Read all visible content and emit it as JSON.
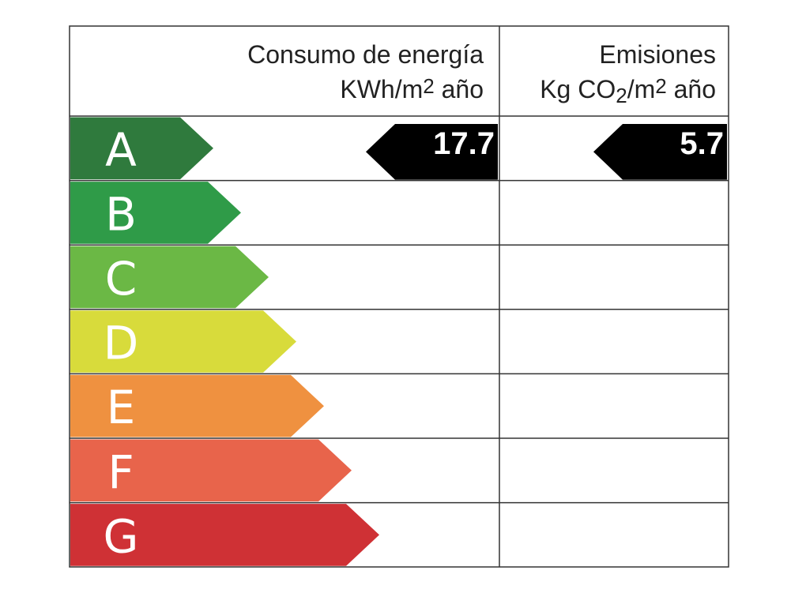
{
  "energy_header": {
    "title": "Consumo de energía",
    "unit": [
      "KWh/m",
      "2",
      " año"
    ]
  },
  "emissions_header": {
    "title": "Emisiones",
    "unit": [
      "Kg CO",
      "2",
      "/m",
      "2",
      " año"
    ]
  },
  "ratings": [
    {
      "letter": "A",
      "color": "#2f7a3d"
    },
    {
      "letter": "B",
      "color": "#2f9b48"
    },
    {
      "letter": "C",
      "color": "#6bb845"
    },
    {
      "letter": "D",
      "color": "#d8db3b"
    },
    {
      "letter": "E",
      "color": "#ef9140"
    },
    {
      "letter": "F",
      "color": "#e8644b"
    },
    {
      "letter": "G",
      "color": "#cf3135"
    }
  ],
  "result": {
    "rating": "A",
    "energy_value": 17.7,
    "emissions_value": 5.7
  }
}
